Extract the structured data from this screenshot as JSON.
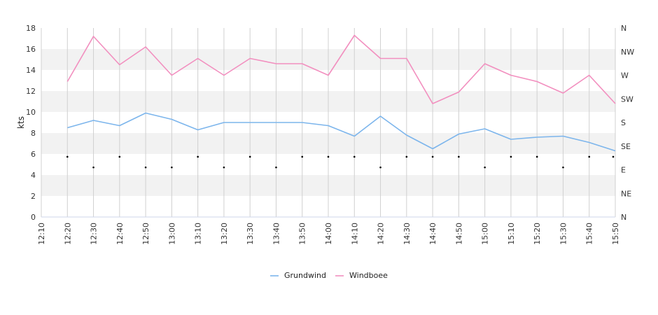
{
  "chart_data": {
    "type": "line",
    "ylabel": "kts",
    "ylim": [
      0,
      18
    ],
    "yticks": [
      "0",
      "2",
      "4",
      "6",
      "8",
      "10",
      "12",
      "14",
      "16",
      "18"
    ],
    "y2_labels": [
      "N",
      "NE",
      "E",
      "SE",
      "S",
      "SW",
      "W",
      "NW",
      "N"
    ],
    "x": [
      "12:10",
      "12:20",
      "12:30",
      "12:40",
      "12:50",
      "13:00",
      "13:10",
      "13:20",
      "13:30",
      "13:40",
      "13:50",
      "14:00",
      "14:10",
      "14:20",
      "14:30",
      "14:40",
      "14:50",
      "15:00",
      "15:10",
      "15:20",
      "15:30",
      "15:40",
      "15:50"
    ],
    "series": [
      {
        "name": "Grundwind",
        "color": "#7cb5ec",
        "values": [
          null,
          8.5,
          9.2,
          8.7,
          9.9,
          9.3,
          8.3,
          9.0,
          9.0,
          9.0,
          9.0,
          8.7,
          7.7,
          9.6,
          7.8,
          6.5,
          7.9,
          8.4,
          7.4,
          7.6,
          7.7,
          7.1,
          6.3
        ]
      },
      {
        "name": "Windboee",
        "color": "#f28fbf",
        "values": [
          null,
          12.9,
          17.2,
          14.5,
          16.2,
          13.5,
          15.1,
          13.5,
          15.1,
          14.6,
          14.6,
          13.5,
          17.3,
          15.1,
          15.1,
          10.8,
          11.9,
          14.6,
          13.5,
          12.9,
          11.8,
          13.5,
          10.8
        ]
      }
    ],
    "direction_markers": [
      null,
      "SE",
      "E",
      "SE",
      "E",
      "E",
      "SE",
      "E",
      "SE",
      "E",
      "SE",
      "SE",
      "SE",
      "E",
      "SE",
      "SE",
      "SE",
      "E",
      "SE",
      "SE",
      "E",
      "SE",
      "SE"
    ],
    "grid": true,
    "legend": "bottom-center"
  }
}
